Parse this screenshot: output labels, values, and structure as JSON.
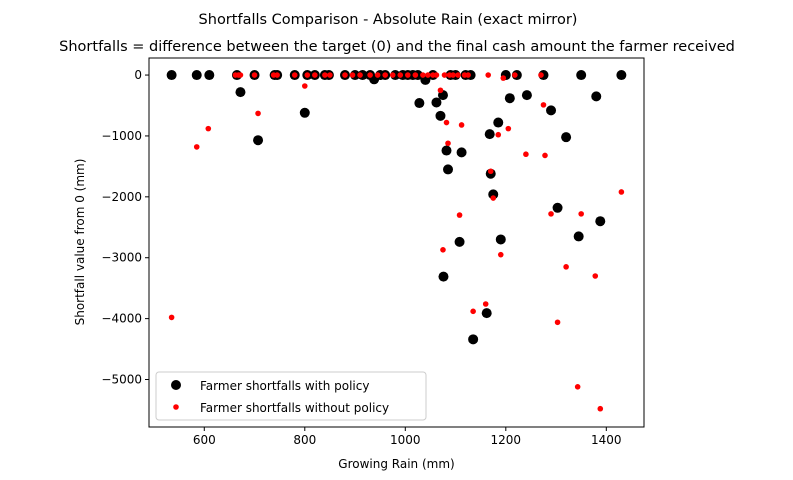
{
  "chart_data": {
    "type": "scatter",
    "suptitle": "Shortfalls Comparison - Absolute Rain (exact mirror)",
    "title": "Shortfalls = difference between the target (0) and the final cash amount the farmer received",
    "xlabel": "Growing Rain (mm)",
    "ylabel": "Shortfall value from 0 (mm)",
    "xlim": [
      490,
      1475
    ],
    "ylim": [
      -5780,
      280
    ],
    "xticks": [
      600,
      800,
      1000,
      1200,
      1400
    ],
    "yticks": [
      0,
      -1000,
      -2000,
      -3000,
      -4000,
      -5000
    ],
    "xtick_labels": [
      "600",
      "800",
      "1000",
      "1200",
      "1400"
    ],
    "ytick_labels": [
      "0",
      "−1000",
      "−2000",
      "−3000",
      "−4000",
      "−5000"
    ],
    "grid": false,
    "legend": {
      "placement": "lower-left",
      "entries": [
        "Farmer shortfalls with policy",
        "Farmer shortfalls without policy"
      ]
    },
    "series": [
      {
        "name": "Farmer shortfalls with policy",
        "color": "#000000",
        "points": [
          [
            535,
            0
          ],
          [
            585,
            0
          ],
          [
            610,
            0
          ],
          [
            665,
            0
          ],
          [
            672,
            -280
          ],
          [
            700,
            0
          ],
          [
            707,
            -1070
          ],
          [
            740,
            0
          ],
          [
            745,
            0
          ],
          [
            780,
            0
          ],
          [
            800,
            -620
          ],
          [
            805,
            0
          ],
          [
            820,
            0
          ],
          [
            840,
            0
          ],
          [
            848,
            0
          ],
          [
            880,
            0
          ],
          [
            900,
            0
          ],
          [
            915,
            0
          ],
          [
            930,
            0
          ],
          [
            938,
            -70
          ],
          [
            950,
            0
          ],
          [
            960,
            0
          ],
          [
            980,
            0
          ],
          [
            995,
            0
          ],
          [
            1005,
            0
          ],
          [
            1015,
            0
          ],
          [
            1025,
            0
          ],
          [
            1028,
            -460
          ],
          [
            1040,
            -80
          ],
          [
            1055,
            0
          ],
          [
            1062,
            -450
          ],
          [
            1070,
            -670
          ],
          [
            1075,
            -330
          ],
          [
            1076,
            -3310
          ],
          [
            1082,
            -1240
          ],
          [
            1085,
            -1550
          ],
          [
            1090,
            0
          ],
          [
            1100,
            0
          ],
          [
            1108,
            -2740
          ],
          [
            1112,
            -1270
          ],
          [
            1120,
            0
          ],
          [
            1130,
            0
          ],
          [
            1135,
            -4340
          ],
          [
            1162,
            -3910
          ],
          [
            1168,
            -970
          ],
          [
            1170,
            -1620
          ],
          [
            1175,
            -1960
          ],
          [
            1185,
            -780
          ],
          [
            1190,
            -2700
          ],
          [
            1200,
            0
          ],
          [
            1208,
            -380
          ],
          [
            1222,
            0
          ],
          [
            1242,
            -330
          ],
          [
            1275,
            0
          ],
          [
            1290,
            -580
          ],
          [
            1303,
            -2180
          ],
          [
            1320,
            -1020
          ],
          [
            1345,
            -2650
          ],
          [
            1350,
            0
          ],
          [
            1380,
            -350
          ],
          [
            1388,
            -2400
          ],
          [
            1430,
            0
          ]
        ]
      },
      {
        "name": "Farmer shortfalls without policy",
        "color": "#ff0000",
        "points": [
          [
            535,
            -3980
          ],
          [
            585,
            -1180
          ],
          [
            608,
            -880
          ],
          [
            662,
            0
          ],
          [
            668,
            0
          ],
          [
            672,
            0
          ],
          [
            700,
            0
          ],
          [
            707,
            -630
          ],
          [
            738,
            0
          ],
          [
            745,
            0
          ],
          [
            780,
            0
          ],
          [
            800,
            -180
          ],
          [
            805,
            0
          ],
          [
            820,
            0
          ],
          [
            840,
            0
          ],
          [
            850,
            0
          ],
          [
            880,
            0
          ],
          [
            895,
            0
          ],
          [
            910,
            0
          ],
          [
            930,
            0
          ],
          [
            945,
            0
          ],
          [
            960,
            0
          ],
          [
            975,
            0
          ],
          [
            990,
            0
          ],
          [
            1005,
            0
          ],
          [
            1020,
            0
          ],
          [
            1035,
            0
          ],
          [
            1045,
            0
          ],
          [
            1055,
            0
          ],
          [
            1062,
            0
          ],
          [
            1070,
            -250
          ],
          [
            1075,
            -2870
          ],
          [
            1078,
            0
          ],
          [
            1082,
            -780
          ],
          [
            1085,
            -1120
          ],
          [
            1088,
            0
          ],
          [
            1095,
            0
          ],
          [
            1105,
            0
          ],
          [
            1108,
            -2300
          ],
          [
            1112,
            -820
          ],
          [
            1118,
            0
          ],
          [
            1125,
            0
          ],
          [
            1135,
            -3880
          ],
          [
            1160,
            -3760
          ],
          [
            1165,
            0
          ],
          [
            1170,
            -1580
          ],
          [
            1175,
            -2020
          ],
          [
            1185,
            -980
          ],
          [
            1190,
            -2950
          ],
          [
            1195,
            -50
          ],
          [
            1205,
            -880
          ],
          [
            1218,
            0
          ],
          [
            1240,
            -1300
          ],
          [
            1270,
            0
          ],
          [
            1275,
            -490
          ],
          [
            1278,
            -1320
          ],
          [
            1290,
            -2280
          ],
          [
            1303,
            -4060
          ],
          [
            1320,
            -3150
          ],
          [
            1343,
            -5120
          ],
          [
            1350,
            -2280
          ],
          [
            1378,
            -3300
          ],
          [
            1388,
            -5480
          ],
          [
            1430,
            -1920
          ]
        ]
      }
    ]
  }
}
